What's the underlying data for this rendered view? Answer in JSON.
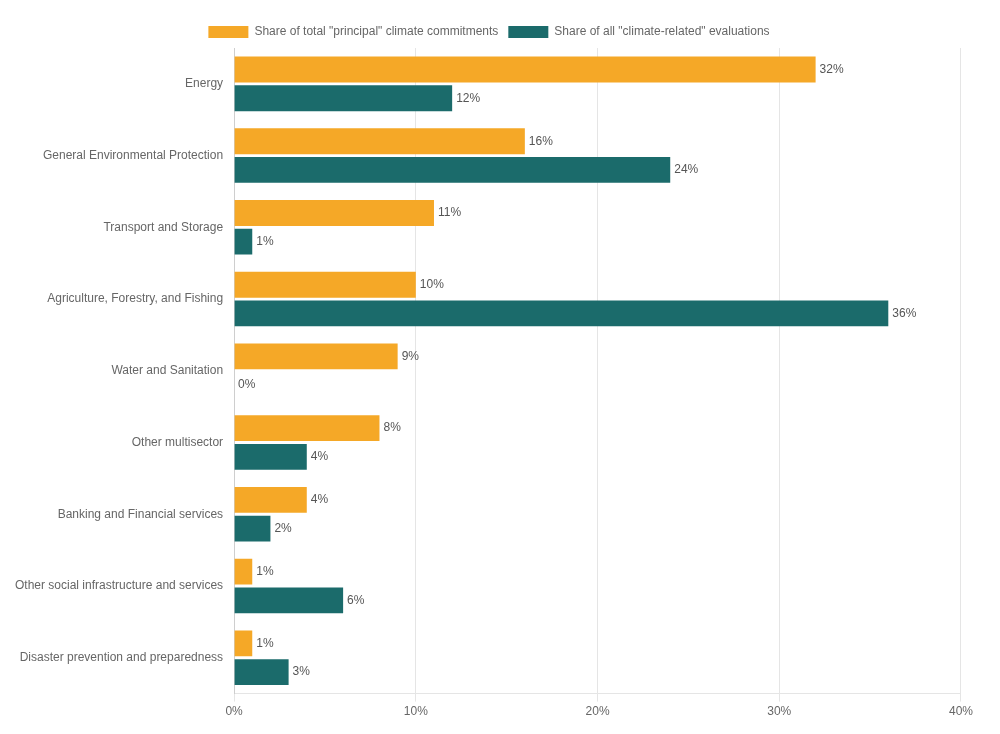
{
  "chart_data": {
    "type": "bar",
    "orientation": "horizontal",
    "categories": [
      "Energy",
      "General Environmental Protection",
      "Transport and Storage",
      "Agriculture, Forestry, and Fishing",
      "Water and Sanitation",
      "Other multisector",
      "Banking and Financial services",
      "Other social infrastructure and services",
      "Disaster prevention and preparedness"
    ],
    "series": [
      {
        "name": "Share of total \"principal\" climate commitments",
        "color": "#F5A827",
        "values": [
          32,
          16,
          11,
          10,
          9,
          8,
          4,
          1,
          1
        ],
        "value_labels": [
          "32%",
          "16%",
          "11%",
          "10%",
          "9%",
          "8%",
          "4%",
          "1%",
          "1%"
        ]
      },
      {
        "name": "Share of all \"climate-related\" evaluations",
        "color": "#1B6B6B",
        "values": [
          12,
          24,
          1,
          36,
          0,
          4,
          2,
          6,
          3
        ],
        "value_labels": [
          "12%",
          "24%",
          "1%",
          "36%",
          "0%",
          "4%",
          "2%",
          "6%",
          "3%"
        ]
      }
    ],
    "xlim": [
      0,
      40
    ],
    "xticks": [
      {
        "value": 0,
        "label": "0%"
      },
      {
        "value": 10,
        "label": "10%"
      },
      {
        "value": 20,
        "label": "20%"
      },
      {
        "value": 30,
        "label": "30%"
      },
      {
        "value": 40,
        "label": "40%"
      }
    ],
    "grid": "x",
    "legend": "top",
    "data_labels": true
  }
}
